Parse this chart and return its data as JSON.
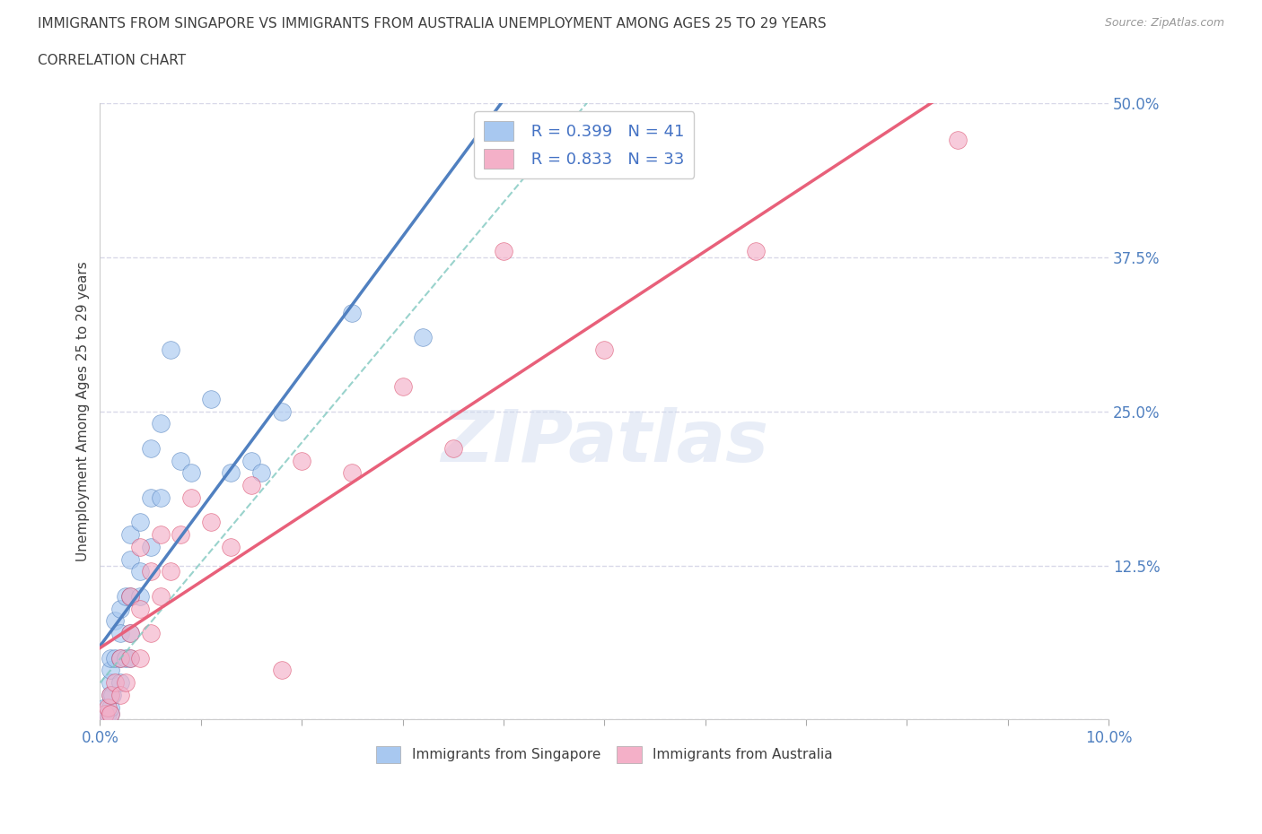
{
  "title_line1": "IMMIGRANTS FROM SINGAPORE VS IMMIGRANTS FROM AUSTRALIA UNEMPLOYMENT AMONG AGES 25 TO 29 YEARS",
  "title_line2": "CORRELATION CHART",
  "source_text": "Source: ZipAtlas.com",
  "watermark": "ZIPatlas",
  "ylabel": "Unemployment Among Ages 25 to 29 years",
  "xlim": [
    0.0,
    0.1
  ],
  "ylim": [
    0.0,
    0.5
  ],
  "xticks": [
    0.0,
    0.01,
    0.02,
    0.03,
    0.04,
    0.05,
    0.06,
    0.07,
    0.08,
    0.09,
    0.1
  ],
  "xtick_labels": [
    "0.0%",
    "",
    "",
    "",
    "",
    "",
    "",
    "",
    "",
    "",
    "10.0%"
  ],
  "yticks": [
    0.0,
    0.125,
    0.25,
    0.375,
    0.5
  ],
  "ytick_labels": [
    "",
    "12.5%",
    "25.0%",
    "37.5%",
    "50.0%"
  ],
  "legend_r1": "R = 0.399",
  "legend_n1": "N = 41",
  "legend_r2": "R = 0.833",
  "legend_n2": "N = 33",
  "color_singapore": "#a8c8f0",
  "color_australia": "#f4b0c8",
  "color_singapore_line": "#5080c0",
  "color_australia_line": "#e8607a",
  "color_singapore_dashed": "#80c8c0",
  "color_singapore_dark": "#4878b8",
  "color_australia_dark": "#d84060",
  "singapore_x": [
    0.0005,
    0.0005,
    0.0008,
    0.001,
    0.001,
    0.001,
    0.001,
    0.001,
    0.001,
    0.0012,
    0.0015,
    0.0015,
    0.002,
    0.002,
    0.002,
    0.002,
    0.0025,
    0.0025,
    0.003,
    0.003,
    0.003,
    0.003,
    0.003,
    0.004,
    0.004,
    0.004,
    0.005,
    0.005,
    0.005,
    0.006,
    0.006,
    0.007,
    0.008,
    0.009,
    0.011,
    0.013,
    0.015,
    0.016,
    0.018,
    0.025,
    0.032
  ],
  "singapore_y": [
    0.005,
    0.01,
    0.005,
    0.005,
    0.01,
    0.02,
    0.03,
    0.04,
    0.05,
    0.02,
    0.05,
    0.08,
    0.03,
    0.05,
    0.07,
    0.09,
    0.05,
    0.1,
    0.05,
    0.07,
    0.1,
    0.13,
    0.15,
    0.1,
    0.12,
    0.16,
    0.14,
    0.18,
    0.22,
    0.18,
    0.24,
    0.3,
    0.21,
    0.2,
    0.26,
    0.2,
    0.21,
    0.2,
    0.25,
    0.33,
    0.31
  ],
  "australia_x": [
    0.0005,
    0.0008,
    0.001,
    0.001,
    0.0015,
    0.002,
    0.002,
    0.0025,
    0.003,
    0.003,
    0.003,
    0.004,
    0.004,
    0.004,
    0.005,
    0.005,
    0.006,
    0.006,
    0.007,
    0.008,
    0.009,
    0.011,
    0.013,
    0.015,
    0.018,
    0.02,
    0.025,
    0.03,
    0.035,
    0.04,
    0.05,
    0.065,
    0.085
  ],
  "australia_y": [
    0.005,
    0.01,
    0.005,
    0.02,
    0.03,
    0.02,
    0.05,
    0.03,
    0.05,
    0.07,
    0.1,
    0.05,
    0.09,
    0.14,
    0.07,
    0.12,
    0.1,
    0.15,
    0.12,
    0.15,
    0.18,
    0.16,
    0.14,
    0.19,
    0.04,
    0.21,
    0.2,
    0.27,
    0.22,
    0.38,
    0.3,
    0.38,
    0.47
  ],
  "background_color": "#ffffff",
  "grid_color": "#d8d8e8",
  "title_color": "#404040",
  "tick_color": "#5080c0",
  "ytick_color": "#5080c0"
}
